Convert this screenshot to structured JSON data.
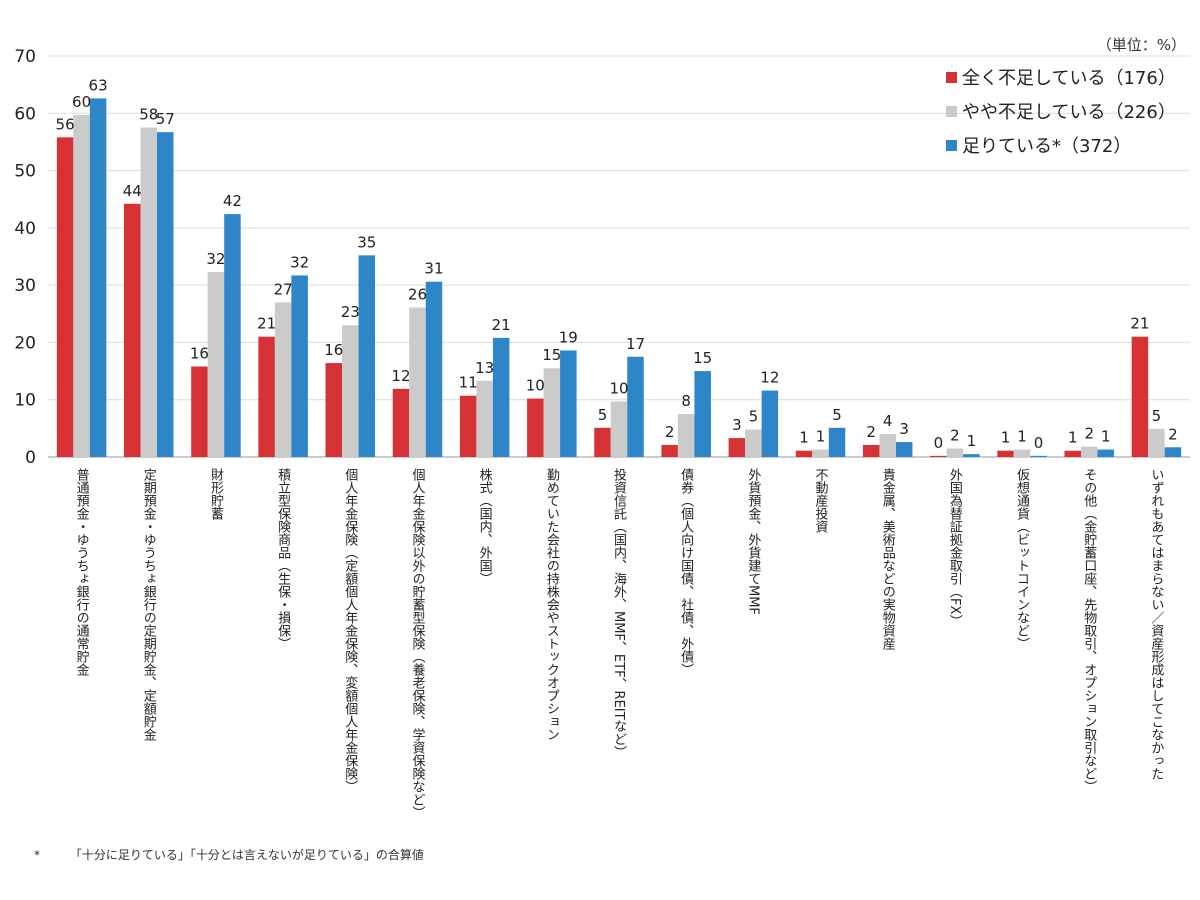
{
  "unit_label": "（単位：%）",
  "footnote": {
    "mark": "*",
    "text": "「十分に足りている」「十分とは言えないが足りている」の合算値"
  },
  "chart_data": {
    "type": "bar",
    "ylim": [
      0,
      70
    ],
    "yticks": [
      0,
      10,
      20,
      30,
      40,
      50,
      60,
      70
    ],
    "grid": true,
    "legend_position": "top-right",
    "categories": [
      "普通預金・ゆうちょ銀行の通常貯金",
      "定期預金・ゆうちょ銀行の定期貯金、定額貯金",
      "財形貯蓄",
      "積立型保険商品（生保・損保）",
      "個人年金保険（定額個人年金保険、変額個人年金保険）",
      "個人年金保険以外の貯蓄型保険（養老保険、学資保険など）",
      "株式（国内、外国）",
      "勤めていた会社の持株会やストックオプション",
      "投資信託（国内、海外、MMF、ETF、REITなど）",
      "債券（個人向け国債、社債、外債）",
      "外貨預金、外貨建てMMF",
      "不動産投資",
      "貴金属、美術品などの実物資産",
      "外国為替証拠金取引（FX）",
      "仮想通貨（ビットコインなど）",
      "その他（金貯蓄口座、先物取引、オプション取引など）",
      "いずれもあてはまらない／資産形成はしてこなかった"
    ],
    "series": [
      {
        "name": "全く不足している（176）",
        "color": "#d63236",
        "values": [
          56,
          44,
          16,
          21,
          16,
          12,
          11,
          10,
          5,
          2,
          3,
          1,
          2,
          0,
          1,
          1,
          21
        ],
        "plot": [
          55.8,
          44.2,
          15.8,
          21.0,
          16.4,
          11.9,
          10.7,
          10.2,
          5.1,
          2.1,
          3.3,
          1.1,
          2.1,
          0.2,
          1.1,
          1.1,
          21.0
        ]
      },
      {
        "name": "やや不足している（226）",
        "color": "#cbcbcb",
        "values": [
          60,
          58,
          32,
          27,
          23,
          26,
          13,
          15,
          10,
          8,
          5,
          1,
          4,
          2,
          1,
          2,
          5
        ],
        "plot": [
          59.7,
          57.5,
          32.3,
          27.0,
          23.0,
          26.1,
          13.3,
          15.5,
          9.7,
          7.5,
          4.8,
          1.3,
          4.0,
          1.5,
          1.3,
          1.8,
          4.9
        ]
      },
      {
        "name": "足りている*（372）",
        "color": "#2e86c8",
        "values": [
          63,
          57,
          42,
          32,
          35,
          31,
          21,
          19,
          17,
          15,
          12,
          5,
          3,
          1,
          0,
          1,
          2
        ],
        "plot": [
          62.6,
          56.7,
          42.4,
          31.7,
          35.2,
          30.6,
          20.8,
          18.6,
          17.5,
          15.0,
          11.6,
          5.1,
          2.6,
          0.5,
          0.2,
          1.3,
          1.7
        ]
      }
    ]
  }
}
